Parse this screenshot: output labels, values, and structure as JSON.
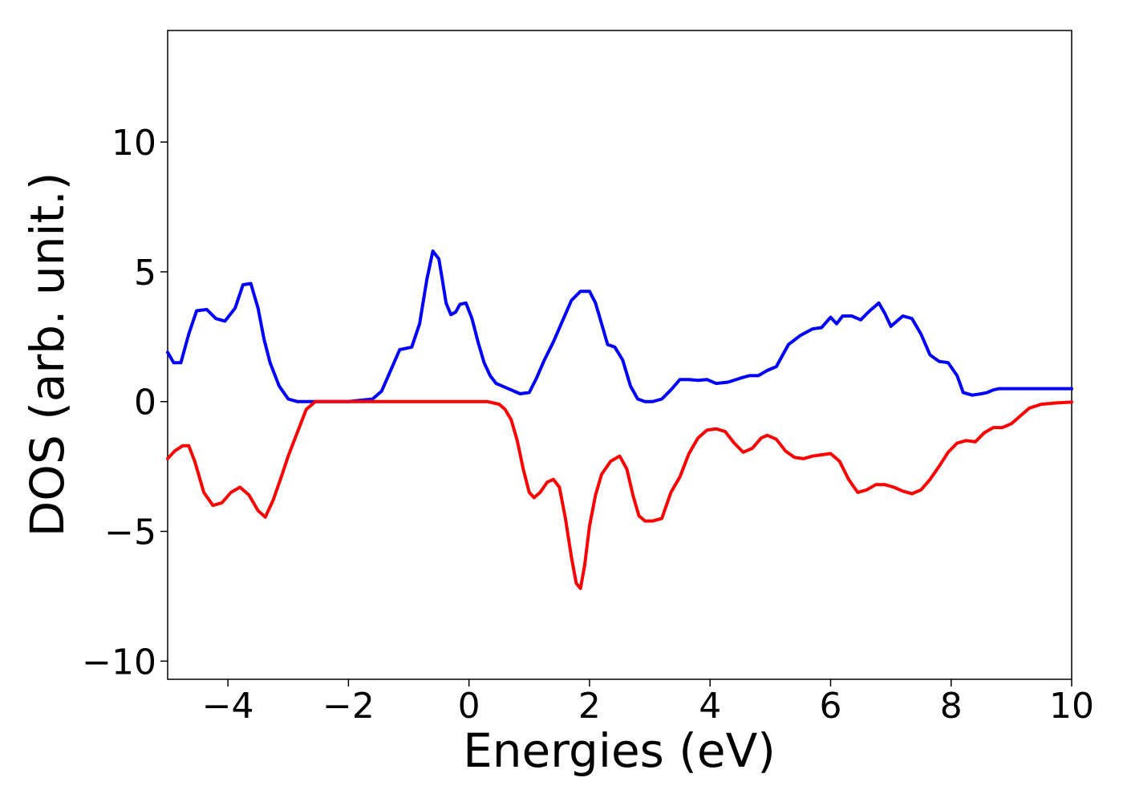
{
  "chart_data": {
    "type": "line",
    "title": "",
    "xlabel": "Energies (eV)",
    "ylabel": "DOS (arb. unit.)",
    "xlim": [
      -5,
      10
    ],
    "ylim": [
      -10.7,
      14.3
    ],
    "xticks": [
      -4,
      -2,
      0,
      2,
      4,
      6,
      8,
      10
    ],
    "xtick_labels": [
      "−4",
      "−2",
      "0",
      "2",
      "4",
      "6",
      "8",
      "10"
    ],
    "yticks": [
      10,
      5,
      0,
      -5,
      -10
    ],
    "ytick_labels": [
      "10",
      "5",
      "0",
      "−5",
      "−10"
    ],
    "grid": false,
    "legend": "none",
    "series": [
      {
        "color": "#0000ff",
        "x": [
          -5.0,
          -4.9,
          -4.78,
          -4.65,
          -4.52,
          -4.35,
          -4.2,
          -4.05,
          -3.88,
          -3.75,
          -3.62,
          -3.5,
          -3.4,
          -3.3,
          -3.15,
          -3.0,
          -2.85,
          -2.7,
          -2.55,
          -2.4,
          -2.0,
          -1.6,
          -1.45,
          -1.3,
          -1.15,
          -1.05,
          -0.95,
          -0.82,
          -0.7,
          -0.6,
          -0.5,
          -0.45,
          -0.38,
          -0.3,
          -0.22,
          -0.15,
          -0.05,
          0.05,
          0.15,
          0.25,
          0.35,
          0.45,
          0.55,
          0.7,
          0.85,
          1.0,
          1.12,
          1.25,
          1.4,
          1.55,
          1.7,
          1.85,
          2.0,
          2.1,
          2.2,
          2.3,
          2.42,
          2.55,
          2.68,
          2.8,
          2.92,
          3.05,
          3.2,
          3.35,
          3.5,
          3.65,
          3.8,
          3.95,
          4.1,
          4.3,
          4.5,
          4.65,
          4.8,
          4.95,
          5.1,
          5.3,
          5.5,
          5.7,
          5.85,
          6.0,
          6.1,
          6.2,
          6.35,
          6.5,
          6.65,
          6.8,
          6.9,
          7.0,
          7.1,
          7.2,
          7.35,
          7.5,
          7.65,
          7.8,
          7.95,
          8.1,
          8.2,
          8.35,
          8.5,
          8.6,
          8.7,
          8.8,
          8.9,
          9.0,
          9.15,
          9.3,
          9.45,
          9.6,
          9.75,
          9.9,
          10.0
        ],
        "y": [
          1.9,
          1.5,
          1.5,
          2.6,
          3.5,
          3.55,
          3.2,
          3.1,
          3.6,
          4.5,
          4.55,
          3.6,
          2.4,
          1.5,
          0.6,
          0.1,
          0.0,
          0.0,
          0.0,
          0.0,
          0.0,
          0.1,
          0.4,
          1.2,
          2.0,
          2.05,
          2.1,
          3.0,
          4.7,
          5.8,
          5.5,
          4.8,
          3.8,
          3.35,
          3.45,
          3.75,
          3.8,
          3.2,
          2.3,
          1.5,
          1.0,
          0.7,
          0.6,
          0.45,
          0.3,
          0.35,
          0.9,
          1.6,
          2.3,
          3.1,
          3.9,
          4.25,
          4.25,
          3.8,
          3.0,
          2.2,
          2.1,
          1.6,
          0.6,
          0.1,
          0.0,
          0.0,
          0.1,
          0.45,
          0.85,
          0.85,
          0.82,
          0.85,
          0.7,
          0.75,
          0.9,
          1.0,
          1.0,
          1.2,
          1.35,
          2.2,
          2.55,
          2.8,
          2.85,
          3.25,
          3.0,
          3.3,
          3.3,
          3.15,
          3.5,
          3.8,
          3.4,
          2.9,
          3.1,
          3.3,
          3.2,
          2.6,
          1.8,
          1.55,
          1.5,
          1.0,
          0.35,
          0.25,
          0.3,
          0.35,
          0.45,
          0.5,
          0.5,
          0.5,
          0.5,
          0.5,
          0.5,
          0.5,
          0.5,
          0.5,
          0.5
        ]
      },
      {
        "color": "#ff0000",
        "x": [
          -5.0,
          -4.88,
          -4.75,
          -4.65,
          -4.55,
          -4.4,
          -4.25,
          -4.1,
          -3.95,
          -3.8,
          -3.65,
          -3.5,
          -3.38,
          -3.25,
          -3.1,
          -3.0,
          -2.85,
          -2.7,
          -2.55,
          -2.3,
          -1.5,
          -0.5,
          0.3,
          0.5,
          0.6,
          0.7,
          0.8,
          0.9,
          1.0,
          1.08,
          1.18,
          1.3,
          1.4,
          1.5,
          1.6,
          1.7,
          1.78,
          1.85,
          1.92,
          2.0,
          2.1,
          2.2,
          2.35,
          2.5,
          2.62,
          2.72,
          2.82,
          2.92,
          3.05,
          3.2,
          3.35,
          3.5,
          3.65,
          3.8,
          3.95,
          4.1,
          4.25,
          4.4,
          4.55,
          4.7,
          4.85,
          4.95,
          5.1,
          5.25,
          5.4,
          5.55,
          5.7,
          5.85,
          6.0,
          6.15,
          6.3,
          6.45,
          6.6,
          6.75,
          6.9,
          7.05,
          7.2,
          7.35,
          7.5,
          7.65,
          7.8,
          7.95,
          8.1,
          8.25,
          8.4,
          8.55,
          8.7,
          8.85,
          9.0,
          9.15,
          9.3,
          9.5,
          9.75,
          10.0
        ],
        "y": [
          -2.2,
          -1.9,
          -1.7,
          -1.7,
          -2.3,
          -3.5,
          -4.0,
          -3.9,
          -3.5,
          -3.3,
          -3.6,
          -4.2,
          -4.45,
          -3.8,
          -2.8,
          -2.1,
          -1.2,
          -0.3,
          0.0,
          0.0,
          0.0,
          0.0,
          0.0,
          -0.1,
          -0.3,
          -0.7,
          -1.5,
          -2.6,
          -3.5,
          -3.7,
          -3.5,
          -3.1,
          -3.0,
          -3.3,
          -4.5,
          -6.0,
          -7.0,
          -7.2,
          -6.3,
          -4.8,
          -3.6,
          -2.8,
          -2.3,
          -2.1,
          -2.6,
          -3.6,
          -4.4,
          -4.6,
          -4.6,
          -4.5,
          -3.5,
          -2.9,
          -2.0,
          -1.4,
          -1.1,
          -1.05,
          -1.15,
          -1.6,
          -1.95,
          -1.8,
          -1.4,
          -1.3,
          -1.45,
          -1.9,
          -2.15,
          -2.2,
          -2.1,
          -2.05,
          -2.0,
          -2.3,
          -3.0,
          -3.5,
          -3.4,
          -3.2,
          -3.2,
          -3.3,
          -3.45,
          -3.55,
          -3.4,
          -3.0,
          -2.5,
          -1.95,
          -1.6,
          -1.5,
          -1.55,
          -1.2,
          -1.0,
          -1.0,
          -0.85,
          -0.55,
          -0.25,
          -0.1,
          -0.05,
          -0.02
        ]
      }
    ]
  }
}
